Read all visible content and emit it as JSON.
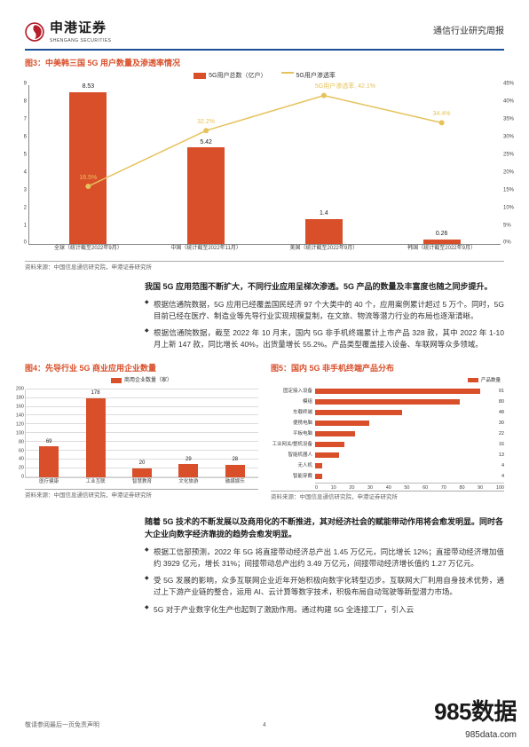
{
  "header": {
    "company": "申港证券",
    "company_en": "SHENGANG SECURITIES",
    "report": "通信行业研究周报"
  },
  "fig3": {
    "title": "图3：中美韩三国 5G 用户数量及渗透率情况",
    "legend_bar": "5G用户总数（亿户）",
    "legend_line": "5G用户渗透率",
    "source": "资料来源：中国信息通信研究院，申港证券研究所",
    "bar_max": 9,
    "line_max": 45,
    "y_left": [
      0,
      1,
      2,
      3,
      4,
      5,
      6,
      7,
      8,
      9
    ],
    "y_right": [
      "0%",
      "5%",
      "10%",
      "15%",
      "20%",
      "25%",
      "30%",
      "35%",
      "40%",
      "45%"
    ],
    "categories": [
      "全球（统计截至2022年9月）",
      "中国（统计截至2022年11月）",
      "美国（统计截至2022年9月）",
      "韩国（统计截至2022年9月）"
    ],
    "bars": [
      8.53,
      5.42,
      1.4,
      0.26
    ],
    "line": [
      16.5,
      32.2,
      42.1,
      34.4
    ],
    "line_labels": [
      "16.5%",
      "32.2%",
      "5G用户渗透率, 42.1%",
      "34.4%"
    ]
  },
  "text1": {
    "lead": "我国 5G 应用范围不断扩大，不同行业应用呈梯次渗透。5G 产品的数量及丰富度也随之同步提升。",
    "bullets": [
      "根据信通院数据，5G 应用已经覆盖国民经济 97 个大类中的 40 个，应用案例累计超过 5 万个。同时，5G 目前已经在医疗、制造业等先导行业实现规模复制，在文旅、物流等潜力行业的布局也逐渐清晰。",
      "根据信通院数据，截至 2022 年 10 月末，国内 5G 非手机终端累计上市产品 328 款，其中 2022 年 1-10 月上新 147 款，同比增长 40%，出货量增长 55.2%。产品类型覆盖接入设备、车联网等众多领域。"
    ]
  },
  "fig4": {
    "title": "图4：先导行业 5G 商业应用企业数量",
    "legend": "商用企业数量（家）",
    "source": "资料来源：中国信息通信研究院，申港证券研究所",
    "ymax": 200,
    "yticks": [
      0,
      20,
      40,
      60,
      80,
      100,
      120,
      140,
      160,
      180,
      200
    ],
    "categories": [
      "医疗健康",
      "工业互联",
      "智慧教育",
      "文化旅游",
      "融媒娱乐"
    ],
    "values": [
      69,
      178,
      20,
      29,
      28
    ]
  },
  "fig5": {
    "title": "图5：国内 5G 非手机终端产品分布",
    "legend": "产品数量",
    "source": "资料来源：中国信息通信研究院，申港证券研究所",
    "xmax": 100,
    "xticks": [
      0,
      10,
      20,
      30,
      40,
      50,
      60,
      70,
      80,
      90,
      100
    ],
    "rows": [
      {
        "cat": "固定接入设备",
        "val": 91
      },
      {
        "cat": "模组",
        "val": 80
      },
      {
        "cat": "车载终端",
        "val": 48
      },
      {
        "cat": "便携电脑",
        "val": 30
      },
      {
        "cat": "平板电脑",
        "val": 22
      },
      {
        "cat": "工业网关/整机设备",
        "val": 16
      },
      {
        "cat": "智能机器人",
        "val": 13
      },
      {
        "cat": "无人机",
        "val": 4
      },
      {
        "cat": "智能穿戴",
        "val": 4
      }
    ]
  },
  "text2": {
    "lead": "随着 5G 技术的不断发展以及商用化的不断推进，其对经济社会的赋能带动作用将会愈发明显。同时各大企业向数字经济靠拢的趋势会愈发明显。",
    "bullets": [
      "根据工信部预测，2022 年 5G 将直接带动经济总产出 1.45 万亿元，同比增长 12%；直接带动经济增加值约 3929 亿元，增长 31%；间接带动总产出约 3.49 万亿元，间接带动经济增长值约 1.27 万亿元。",
      "受 5G 发展的影响，众多互联网企业近年开始积极向数字化转型迈步。互联网大厂利用自身技术优势，通过上下游产业链的整合，运用 AI、云计算等数字技术，积极布局自动驾驶等新型潜力市场。",
      "5G 对于产业数字化生产也起到了激励作用。通过构建 5G 全连接工厂，引入云"
    ]
  },
  "footer": {
    "left": "敬请参阅最后一页免责声明",
    "page": "4",
    "right": "证券研究报告"
  },
  "watermark": {
    "big": "985数据",
    "small": "985data.com"
  }
}
